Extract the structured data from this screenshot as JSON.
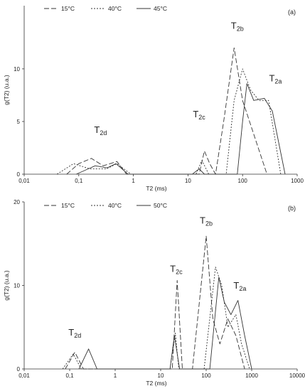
{
  "chart_data": [
    {
      "type": "line",
      "panel_label": "(a)",
      "xlabel": "T2 (ms)",
      "ylabel": "g(T2) (u.a.)",
      "xscale": "log",
      "xlim": [
        0.01,
        1000
      ],
      "ylim": [
        0,
        16
      ],
      "x_ticks": [
        0.01,
        0.1,
        1,
        10,
        100,
        1000
      ],
      "x_tick_labels": [
        "0,01",
        "0,1",
        "1",
        "10",
        "100",
        "1000"
      ],
      "y_ticks": [
        0,
        5,
        10
      ],
      "y_tick_labels": [
        "0",
        "5",
        "10"
      ],
      "legend_position": "top-left",
      "grid": false,
      "series": [
        {
          "name": "15°C",
          "style": "dashed",
          "points": [
            [
              0.06,
              0
            ],
            [
              0.1,
              1.0
            ],
            [
              0.17,
              1.5
            ],
            [
              0.28,
              0.8
            ],
            [
              0.5,
              1.2
            ],
            [
              0.75,
              0
            ],
            [
              16,
              0
            ],
            [
              20,
              2.2
            ],
            [
              25,
              1.0
            ],
            [
              32,
              0
            ],
            [
              45,
              5
            ],
            [
              70,
              12
            ],
            [
              100,
              7
            ],
            [
              180,
              3
            ],
            [
              280,
              0
            ]
          ]
        },
        {
          "name": "40°C",
          "style": "dotted",
          "points": [
            [
              0.04,
              0
            ],
            [
              0.08,
              1.0
            ],
            [
              0.16,
              0.5
            ],
            [
              0.32,
              0.5
            ],
            [
              0.5,
              1.0
            ],
            [
              0.9,
              0
            ],
            [
              14,
              0
            ],
            [
              18,
              1.3
            ],
            [
              24,
              0
            ],
            [
              50,
              0
            ],
            [
              70,
              7
            ],
            [
              100,
              10
            ],
            [
              140,
              8
            ],
            [
              200,
              7
            ],
            [
              300,
              7
            ],
            [
              500,
              0
            ]
          ]
        },
        {
          "name": "45°C",
          "style": "solid",
          "points": [
            [
              0.09,
              0
            ],
            [
              0.2,
              0.8
            ],
            [
              0.33,
              0.6
            ],
            [
              0.48,
              1.0
            ],
            [
              0.8,
              0
            ],
            [
              12,
              0
            ],
            [
              16,
              0.5
            ],
            [
              20,
              0
            ],
            [
              80,
              0
            ],
            [
              100,
              5
            ],
            [
              120,
              8.6
            ],
            [
              160,
              7
            ],
            [
              250,
              7.2
            ],
            [
              350,
              6
            ],
            [
              600,
              0
            ]
          ]
        }
      ],
      "annotations": [
        {
          "text": "T",
          "sub": "2d",
          "x": 0.25,
          "y": 3.9
        },
        {
          "text": "T",
          "sub": "2c",
          "x": 16,
          "y": 5.4
        },
        {
          "text": "T",
          "sub": "2b",
          "x": 80,
          "y": 13.8
        },
        {
          "text": "T",
          "sub": "2a",
          "x": 400,
          "y": 8.8
        }
      ]
    },
    {
      "type": "line",
      "panel_label": "(b)",
      "xlabel": "T2 (ms)",
      "ylabel": "g(T2) (u.a.)",
      "xscale": "log",
      "xlim": [
        0.01,
        10000
      ],
      "ylim": [
        0,
        20
      ],
      "x_ticks": [
        0.01,
        0.1,
        1,
        10,
        100,
        1000,
        10000
      ],
      "x_tick_labels": [
        "0,01",
        "0,1",
        "1",
        "10",
        "100",
        "1000",
        "10000"
      ],
      "y_ticks": [
        0,
        10,
        20
      ],
      "y_tick_labels": [
        "0",
        "10",
        "20"
      ],
      "legend_position": "top-left",
      "grid": false,
      "series": [
        {
          "name": "15°C",
          "style": "dashed",
          "points": [
            [
              0.08,
              0
            ],
            [
              0.13,
              2.0
            ],
            [
              0.2,
              0
            ],
            [
              18,
              0
            ],
            [
              23,
              10.6
            ],
            [
              30,
              0
            ],
            [
              50,
              0
            ],
            [
              100,
              15.9
            ],
            [
              140,
              6
            ],
            [
              200,
              3
            ],
            [
              300,
              6
            ],
            [
              450,
              4
            ],
            [
              700,
              0
            ]
          ]
        },
        {
          "name": "40°C",
          "style": "dotted",
          "points": [
            [
              0.07,
              0
            ],
            [
              0.12,
              1.8
            ],
            [
              0.18,
              0
            ],
            [
              16,
              0
            ],
            [
              21,
              4.3
            ],
            [
              25,
              0
            ],
            [
              90,
              0
            ],
            [
              160,
              12.2
            ],
            [
              220,
              10
            ],
            [
              300,
              5
            ],
            [
              450,
              6.5
            ],
            [
              600,
              3
            ],
            [
              900,
              0
            ]
          ]
        },
        {
          "name": "50°C",
          "style": "solid",
          "points": [
            [
              0.16,
              0
            ],
            [
              0.26,
              2.4
            ],
            [
              0.4,
              0
            ],
            [
              16,
              0
            ],
            [
              20,
              4.0
            ],
            [
              26,
              0
            ],
            [
              120,
              0
            ],
            [
              190,
              11.0
            ],
            [
              250,
              8
            ],
            [
              350,
              6.5
            ],
            [
              500,
              8.2
            ],
            [
              700,
              4
            ],
            [
              1000,
              0
            ]
          ]
        }
      ],
      "annotations": [
        {
          "text": "T",
          "sub": "2d",
          "x": 0.13,
          "y": 4.0
        },
        {
          "text": "T",
          "sub": "2c",
          "x": 22,
          "y": 11.6
        },
        {
          "text": "T",
          "sub": "2b",
          "x": 100,
          "y": 17.4
        },
        {
          "text": "T",
          "sub": "2a",
          "x": 550,
          "y": 9.6
        }
      ]
    }
  ]
}
